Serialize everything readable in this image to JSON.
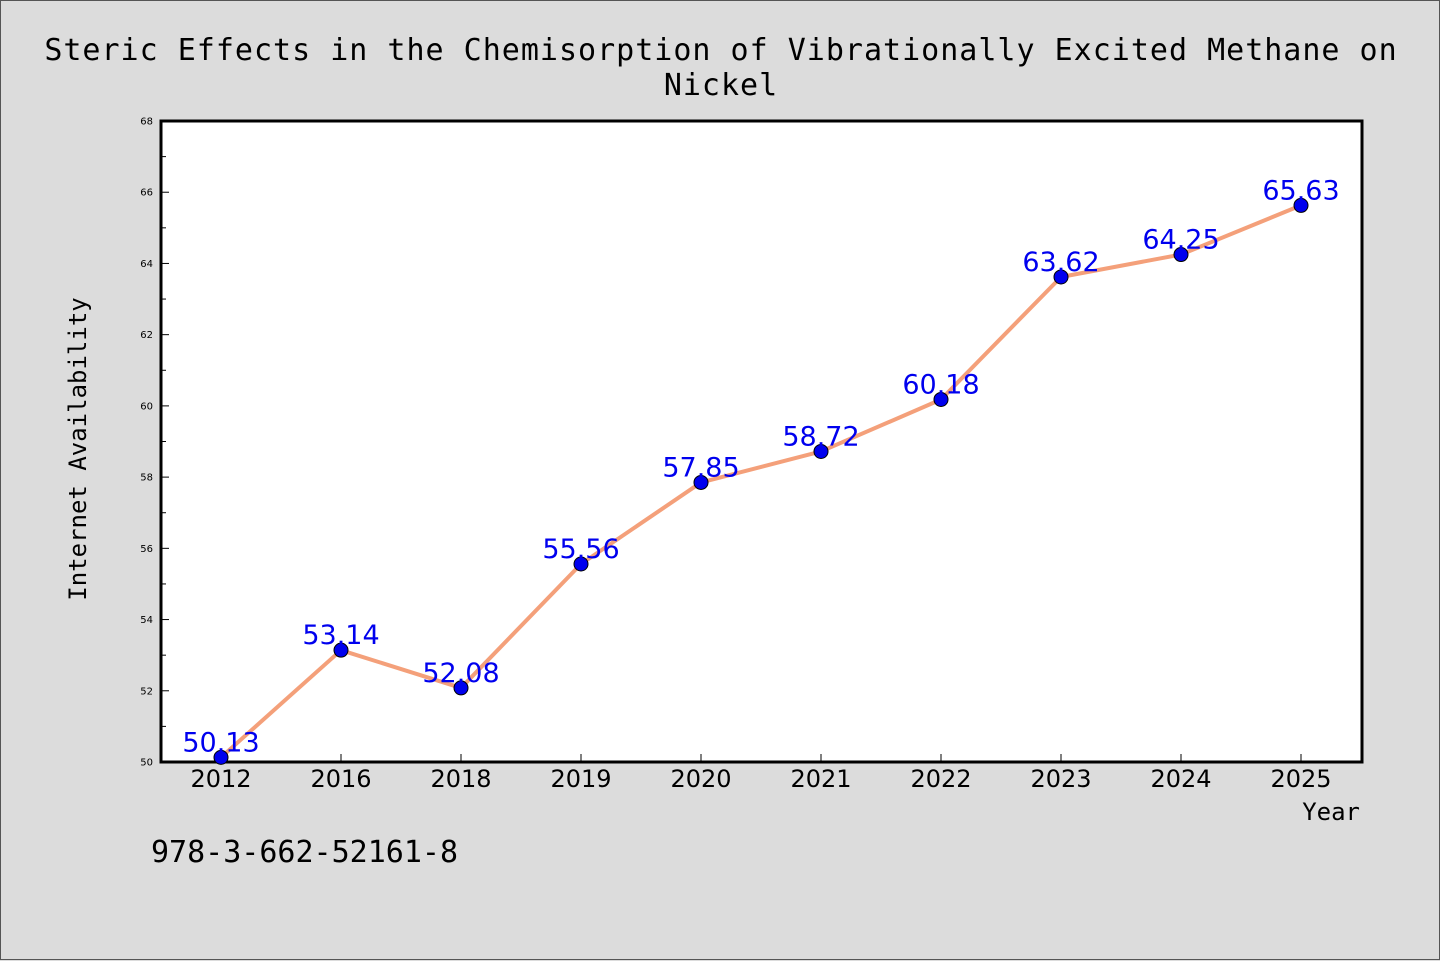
{
  "chart_data": {
    "type": "line",
    "title": "Steric Effects in the Chemisorption of Vibrationally Excited Methane on Nickel",
    "xlabel": "Year",
    "ylabel": "Internet Availability",
    "categories": [
      "2012",
      "2016",
      "2018",
      "2019",
      "2020",
      "2021",
      "2022",
      "2023",
      "2024",
      "2025"
    ],
    "series": [
      {
        "values": [
          50.13,
          53.14,
          52.08,
          55.56,
          57.85,
          58.72,
          60.18,
          63.62,
          64.25,
          65.63
        ],
        "value_labels": [
          "50.13",
          "53.14",
          "52.08",
          "55.56",
          "57.85",
          "58.72",
          "60.18",
          "63.62",
          "64.25",
          "65.63"
        ],
        "line_color": "#f4a07a",
        "marker_color": "#0000ee",
        "label_color": "#0000ee"
      }
    ],
    "ylim": [
      50,
      68
    ],
    "yticks": [
      "50",
      "52",
      "54",
      "56",
      "58",
      "60",
      "62",
      "64",
      "66",
      "68"
    ],
    "grid": false,
    "legend": "none"
  },
  "annotation": "978-3-662-52161-8",
  "colors": {
    "background": "#dcdcdc",
    "plot_area": "#ffffff"
  }
}
